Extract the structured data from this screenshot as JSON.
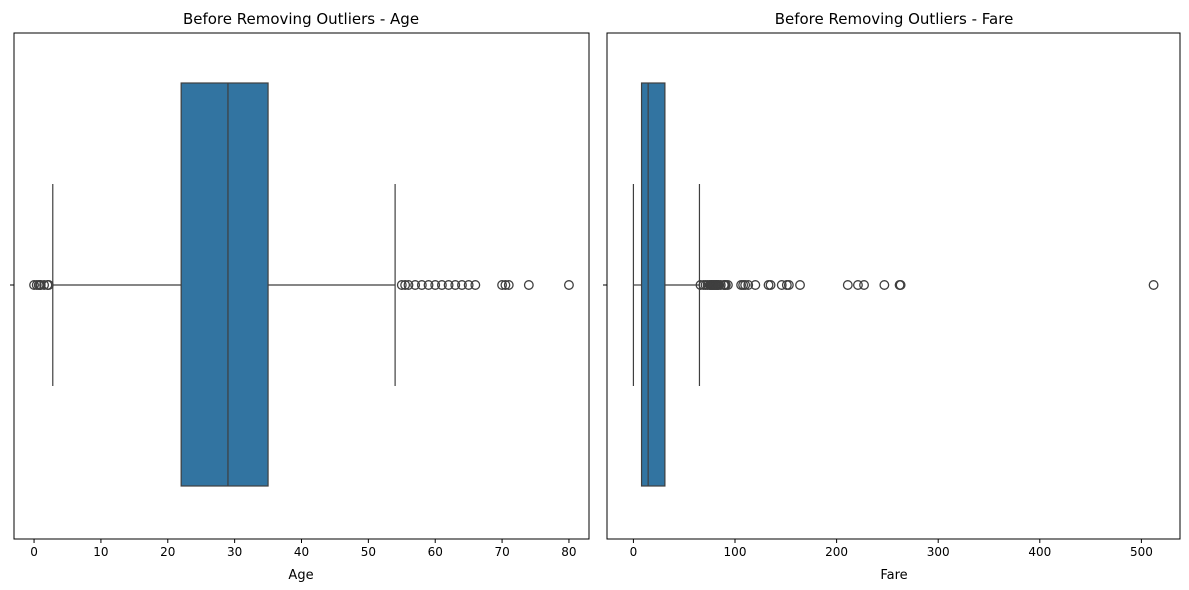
{
  "chart_data": [
    {
      "type": "box",
      "title": "Before Removing Outliers - Age",
      "xlabel": "Age",
      "ylabel": "",
      "xlim": [
        -3,
        83
      ],
      "xticks": [
        0,
        10,
        20,
        30,
        40,
        50,
        60,
        70,
        80
      ],
      "grid": false,
      "box": {
        "whisker_low": 2.8,
        "q1": 22,
        "median": 29,
        "q3": 35,
        "whisker_high": 54
      },
      "outliers": [
        0,
        0.4,
        0.7,
        0.9,
        1,
        1.5,
        2,
        2.2,
        55,
        55.5,
        56,
        57,
        58,
        59,
        60,
        61,
        62,
        63,
        64,
        65,
        66,
        70,
        70.5,
        71,
        74,
        80
      ],
      "color": "#3274a1"
    },
    {
      "type": "box",
      "title": "Before Removing Outliers - Fare",
      "xlabel": "Fare",
      "ylabel": "",
      "xlim": [
        -26,
        538
      ],
      "xticks": [
        0,
        100,
        200,
        300,
        400,
        500
      ],
      "grid": false,
      "box": {
        "whisker_low": 0,
        "q1": 8,
        "median": 14.5,
        "q3": 31,
        "whisker_high": 65
      },
      "outliers": [
        66,
        69,
        71,
        73,
        75,
        76,
        77,
        78,
        79,
        80,
        81,
        82,
        83,
        84,
        86,
        89,
        90,
        91,
        93,
        106,
        108,
        110,
        113,
        120,
        133,
        135,
        146,
        151,
        153,
        164,
        211,
        221,
        227,
        247,
        262,
        263,
        512
      ],
      "color": "#3274a1"
    }
  ]
}
